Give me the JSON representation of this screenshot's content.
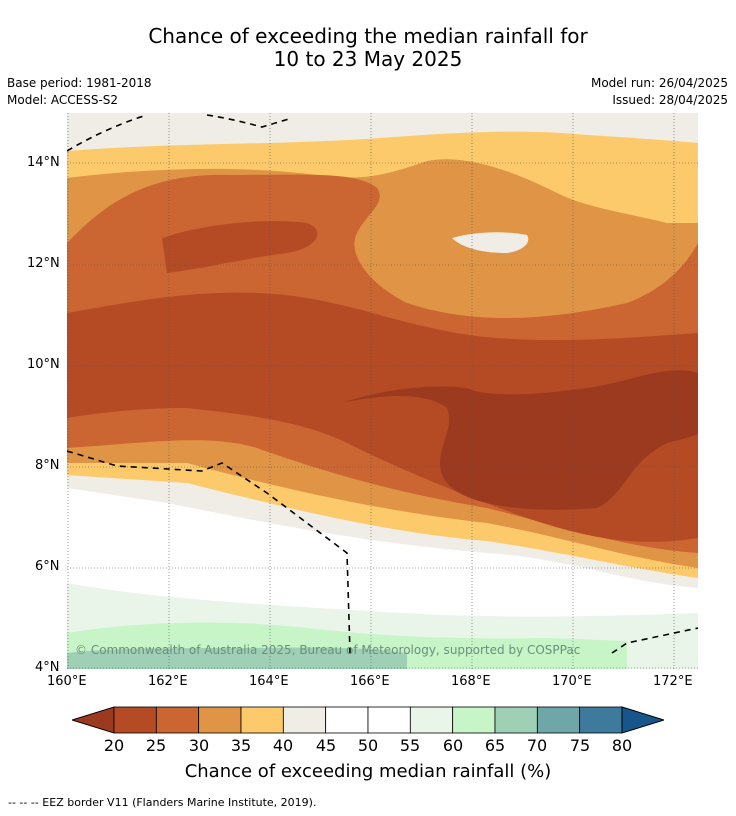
{
  "title": {
    "line1": "Chance of exceeding the median rainfall for",
    "line2": "10 to 23 May 2025"
  },
  "meta": {
    "base_period": "Base period: 1981-2018",
    "model": "Model: ACCESS-S2",
    "model_run": "Model run: 26/04/2025",
    "issued": "Issued: 28/04/2025"
  },
  "map": {
    "lon_labels": [
      "160°E",
      "162°E",
      "164°E",
      "166°E",
      "168°E",
      "170°E",
      "172°E"
    ],
    "lat_labels": [
      "14°N",
      "12°N",
      "10°N",
      "8°N",
      "6°N",
      "4°N"
    ],
    "copyright": "© Commonwealth of Australia 2025, Bureau of Meteorology, supported by COSPPac"
  },
  "colorbar": {
    "labels": [
      "20",
      "25",
      "30",
      "35",
      "40",
      "45",
      "50",
      "55",
      "60",
      "65",
      "70",
      "75",
      "80"
    ],
    "colors": [
      "#9b3a1f",
      "#b44b24",
      "#cb6532",
      "#e09446",
      "#fcca6b",
      "#f0ece6",
      "#ffffff",
      "#ffffff",
      "#e8f5e8",
      "#c8f5c8",
      "#9fd0b6",
      "#6fa6a8",
      "#3e7a9c",
      "#17568a"
    ],
    "caption": "Chance of exceeding median rainfall (%)"
  },
  "footer": "--  --  -- EEZ border V11 (Flanders Marine Institute, 2019)."
}
